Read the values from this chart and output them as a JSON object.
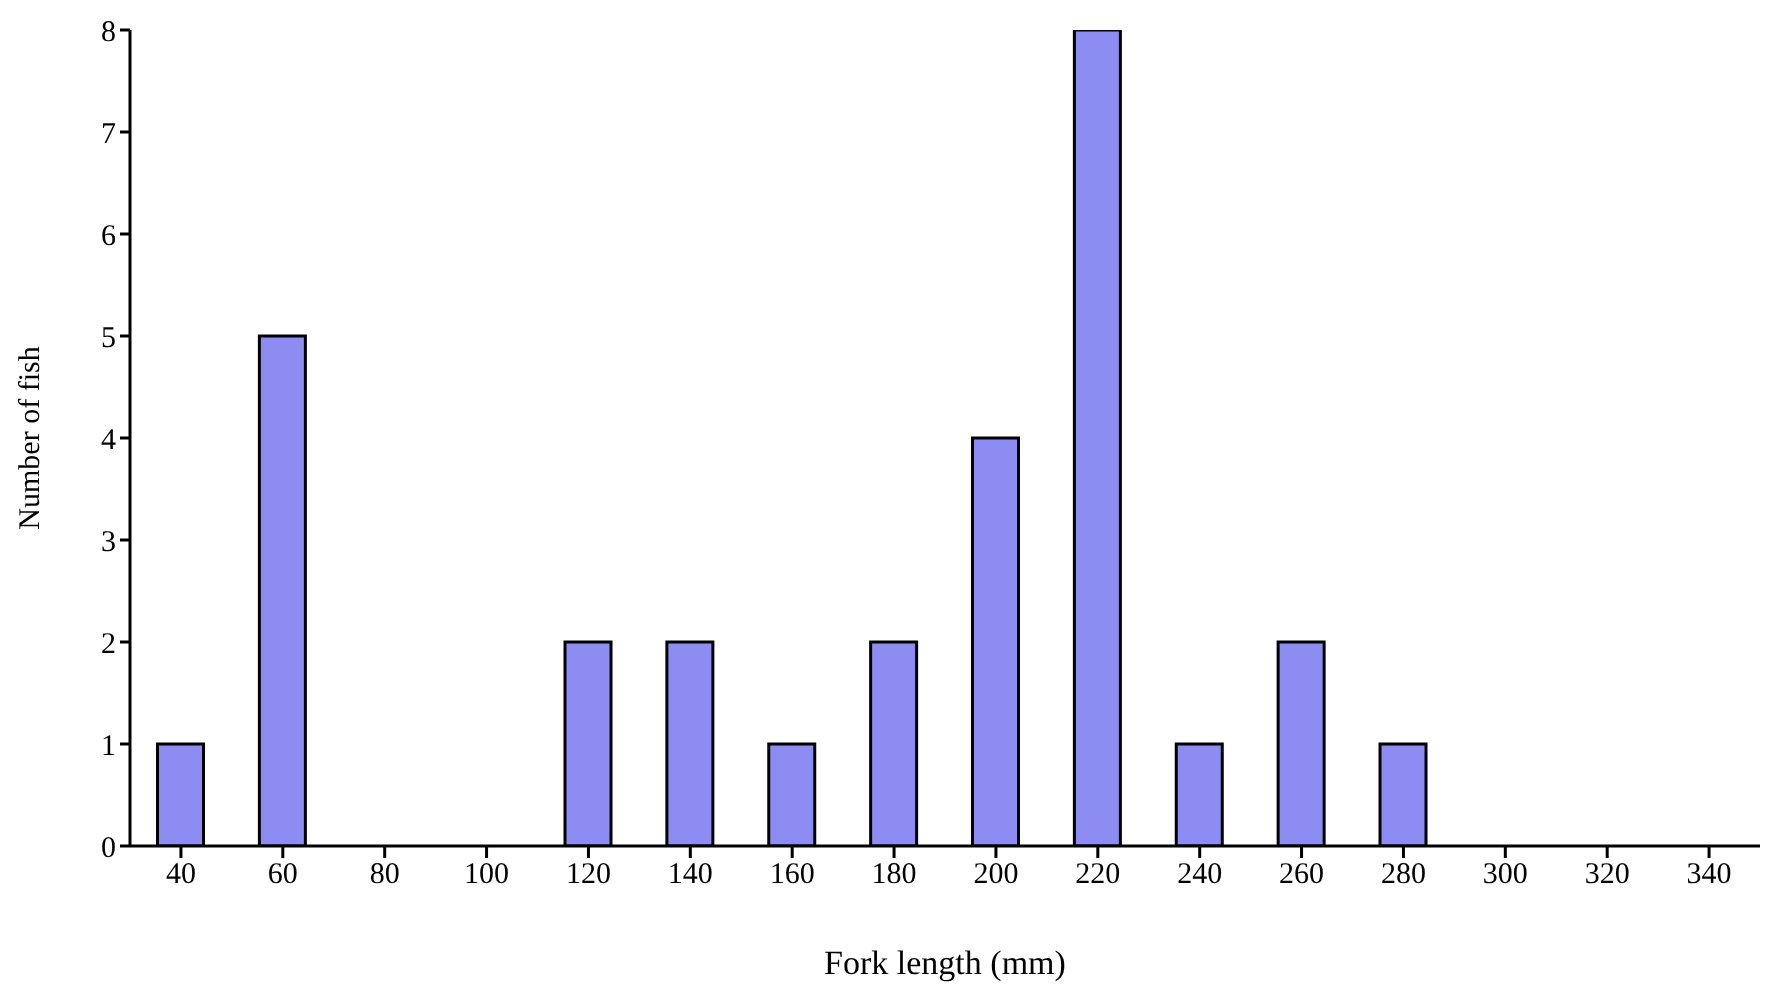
{
  "chart_data": {
    "type": "bar",
    "xlabel": "Fork length (mm)",
    "ylabel": "Number of fish",
    "categories": [
      "40",
      "60",
      "80",
      "100",
      "120",
      "140",
      "160",
      "180",
      "200",
      "220",
      "240",
      "260",
      "280",
      "300",
      "320",
      "340"
    ],
    "values": [
      1,
      5,
      0,
      0,
      2,
      2,
      1,
      2,
      4,
      8,
      1,
      2,
      1,
      0,
      0,
      0
    ],
    "color": "#8c8cf2",
    "ylim": [
      0,
      8
    ],
    "yticks": [
      0,
      1,
      2,
      3,
      4,
      5,
      6,
      7,
      8
    ],
    "grid": false,
    "legend": false
  }
}
